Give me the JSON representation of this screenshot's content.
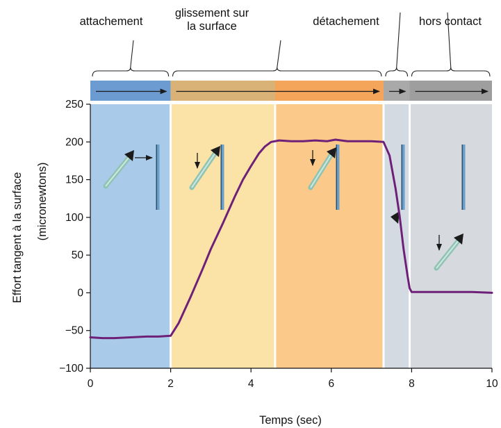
{
  "chart_data": {
    "type": "line",
    "title": "",
    "xlabel": "Temps (sec)",
    "ylabel": "Effort tangent à la surface",
    "ylabel_unit": "(micronewtons)",
    "xlim": [
      0,
      10
    ],
    "ylim": [
      -100,
      250
    ],
    "x_ticks": [
      "0",
      "2",
      "4",
      "6",
      "8",
      "10"
    ],
    "y_ticks": [
      "250",
      "200",
      "150",
      "100",
      "50",
      "0",
      "−50",
      "−100"
    ],
    "phases": [
      {
        "label_lines": [
          "attachement"
        ],
        "x_start": 0,
        "x_end": 2,
        "color": "#a9cbe9",
        "bar_color": "#6c9bd1"
      },
      {
        "label_lines": [
          "glissement sur",
          "la surface"
        ],
        "x_start": 2,
        "x_end": 7.3,
        "color": "#fbe3a8",
        "bar_color": "#d9b277"
      },
      {
        "label_lines": [
          "détachement"
        ],
        "x_start": 7.3,
        "x_end": 7.95,
        "color": "#d4dae2",
        "bar_color": "#a9a9a9"
      },
      {
        "label_lines": [
          "hors contact"
        ],
        "x_start": 7.95,
        "x_end": 10,
        "color": "#d6d9dd",
        "bar_color": "#9e9e9e"
      }
    ],
    "sub_regions": [
      {
        "x_start": 4.6,
        "x_end": 7.3,
        "color": "#fbc98a",
        "bar_color": "#f4a55a"
      }
    ],
    "series": [
      {
        "color": "#6e1f78",
        "x": [
          0,
          0.3,
          0.6,
          1.0,
          1.4,
          1.7,
          2.0,
          2.2,
          2.5,
          2.8,
          3.0,
          3.3,
          3.6,
          3.8,
          4.0,
          4.2,
          4.35,
          4.5,
          4.7,
          5.0,
          5.3,
          5.6,
          5.9,
          6.1,
          6.4,
          6.7,
          7.0,
          7.3,
          7.45,
          7.6,
          7.7,
          7.8,
          7.9,
          7.95,
          8.0,
          8.5,
          9.0,
          9.5,
          10.0
        ],
        "y": [
          -59,
          -60,
          -60,
          -59,
          -58,
          -58,
          -57,
          -40,
          -5,
          32,
          58,
          92,
          128,
          150,
          168,
          185,
          194,
          200,
          202,
          201,
          201,
          202,
          201,
          203,
          201,
          201,
          201,
          200,
          182,
          138,
          102,
          58,
          22,
          6,
          1,
          1,
          1,
          1,
          0
        ]
      }
    ],
    "grid": false,
    "legend": "none"
  }
}
